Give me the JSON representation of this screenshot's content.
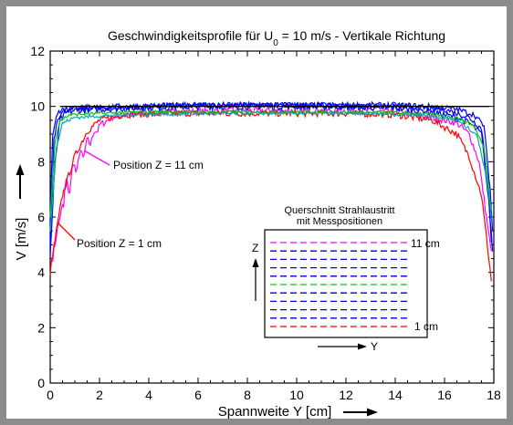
{
  "chart_data": {
    "type": "line",
    "title_prefix": "Geschwindigkeitsprofile für U",
    "title_subscript": "0",
    "title_suffix": " = 10 m/s - Vertikale Richtung",
    "xlabel": "Spannweite Y [cm]",
    "ylabel": "V [m/s]",
    "xlim": [
      0,
      18
    ],
    "ylim": [
      0,
      12
    ],
    "xticks": [
      0,
      2,
      4,
      6,
      8,
      10,
      12,
      14,
      16,
      18
    ],
    "yticks": [
      0,
      2,
      4,
      6,
      8,
      10,
      12
    ],
    "x_minor_step": 0.5,
    "y_minor_step": 0.5,
    "reference_line": {
      "y": 10,
      "x": [
        0.4,
        17.8
      ],
      "color": "#000000"
    },
    "series": [
      {
        "color": "#ff00ff",
        "noise": 0.12,
        "x": [
          0.1,
          0.3,
          0.6,
          1.0,
          1.5,
          2.0,
          2.5,
          3,
          5,
          8,
          10,
          12,
          14,
          15.5,
          16.5,
          17,
          17.4,
          17.7,
          17.9
        ],
        "y": [
          4.5,
          5.6,
          6.8,
          7.8,
          8.6,
          9.3,
          9.6,
          9.7,
          9.8,
          9.85,
          9.85,
          9.85,
          9.8,
          9.6,
          9.4,
          9.0,
          8.0,
          6.0,
          4.7
        ]
      },
      {
        "color": "#ff0000",
        "noise": 0.12,
        "x": [
          0.0,
          0.2,
          0.5,
          1.0,
          1.5,
          2.0,
          3,
          5,
          8,
          10,
          12,
          14,
          15.5,
          16.5,
          17,
          17.5,
          17.8,
          17.9
        ],
        "y": [
          4.0,
          5.2,
          6.8,
          8.2,
          9.1,
          9.5,
          9.7,
          9.75,
          9.75,
          9.75,
          9.75,
          9.7,
          9.5,
          9.0,
          8.2,
          6.8,
          4.5,
          3.7
        ]
      },
      {
        "color": "#0000ff",
        "noise": 0.12,
        "x": [
          0.0,
          0.2,
          0.4,
          0.7,
          1.0,
          2,
          4,
          6,
          8,
          10,
          12,
          14,
          15.5,
          16.5,
          17,
          17.5,
          17.8,
          17.95
        ],
        "y": [
          4.6,
          8.0,
          9.5,
          9.8,
          9.85,
          9.9,
          9.95,
          10.0,
          10.0,
          10.0,
          10.0,
          9.95,
          9.8,
          9.6,
          9.4,
          9.0,
          6.5,
          4.8
        ]
      },
      {
        "color": "#0000ff",
        "noise": 0.1,
        "x": [
          0.0,
          0.15,
          0.3,
          0.6,
          1.0,
          2,
          4,
          6,
          8,
          10,
          12,
          14,
          16,
          17,
          17.5,
          17.75,
          17.9
        ],
        "y": [
          5.0,
          8.8,
          9.6,
          9.85,
          9.9,
          9.95,
          10.0,
          10.05,
          10.05,
          10.05,
          10.0,
          10.0,
          9.9,
          9.6,
          9.2,
          7.5,
          5.0
        ]
      },
      {
        "color": "#0000ff",
        "noise": 0.1,
        "x": [
          0.0,
          0.1,
          0.25,
          0.5,
          1.0,
          3,
          6,
          9,
          12,
          14,
          15.5,
          16.5,
          17.2,
          17.6,
          17.85,
          17.95
        ],
        "y": [
          5.8,
          9.0,
          9.7,
          9.9,
          9.95,
          10.0,
          10.05,
          10.05,
          10.05,
          10.05,
          10.0,
          9.9,
          9.7,
          9.3,
          7.0,
          5.5
        ]
      },
      {
        "color": "#00cc00",
        "noise": 0.06,
        "x": [
          0.0,
          0.2,
          0.4,
          0.8,
          2,
          4,
          8,
          12,
          15,
          16.5,
          17.2,
          17.6,
          17.8,
          17.9
        ],
        "y": [
          6.0,
          8.8,
          9.5,
          9.7,
          9.75,
          9.8,
          9.8,
          9.8,
          9.75,
          9.6,
          9.3,
          8.5,
          7.0,
          6.2
        ]
      },
      {
        "color": "#00aaaa",
        "noise": 0.06,
        "x": [
          0.0,
          0.25,
          0.5,
          1.0,
          3,
          8,
          12,
          15,
          16.5,
          17.3,
          17.7,
          17.9
        ],
        "y": [
          5.5,
          8.5,
          9.4,
          9.6,
          9.7,
          9.75,
          9.75,
          9.7,
          9.5,
          9.0,
          7.5,
          6.0
        ]
      }
    ],
    "annotations": {
      "z11": "Position Z = 11 cm",
      "z1": "Position Z = 1 cm"
    },
    "inset": {
      "title_line1": "Querschnitt Strahlaustritt",
      "title_line2": "mit Messpositionen",
      "z_label": "Z",
      "y_label": "Y",
      "top_label": "11 cm",
      "bottom_label": "1 cm",
      "line_colors": [
        "#ff00ff",
        "#0000cc",
        "#0000cc",
        "#0000cc",
        "#0000cc",
        "#00cc00",
        "#0000cc",
        "#0000cc",
        "#0000cc",
        "#0000cc",
        "#ff0000"
      ]
    }
  }
}
